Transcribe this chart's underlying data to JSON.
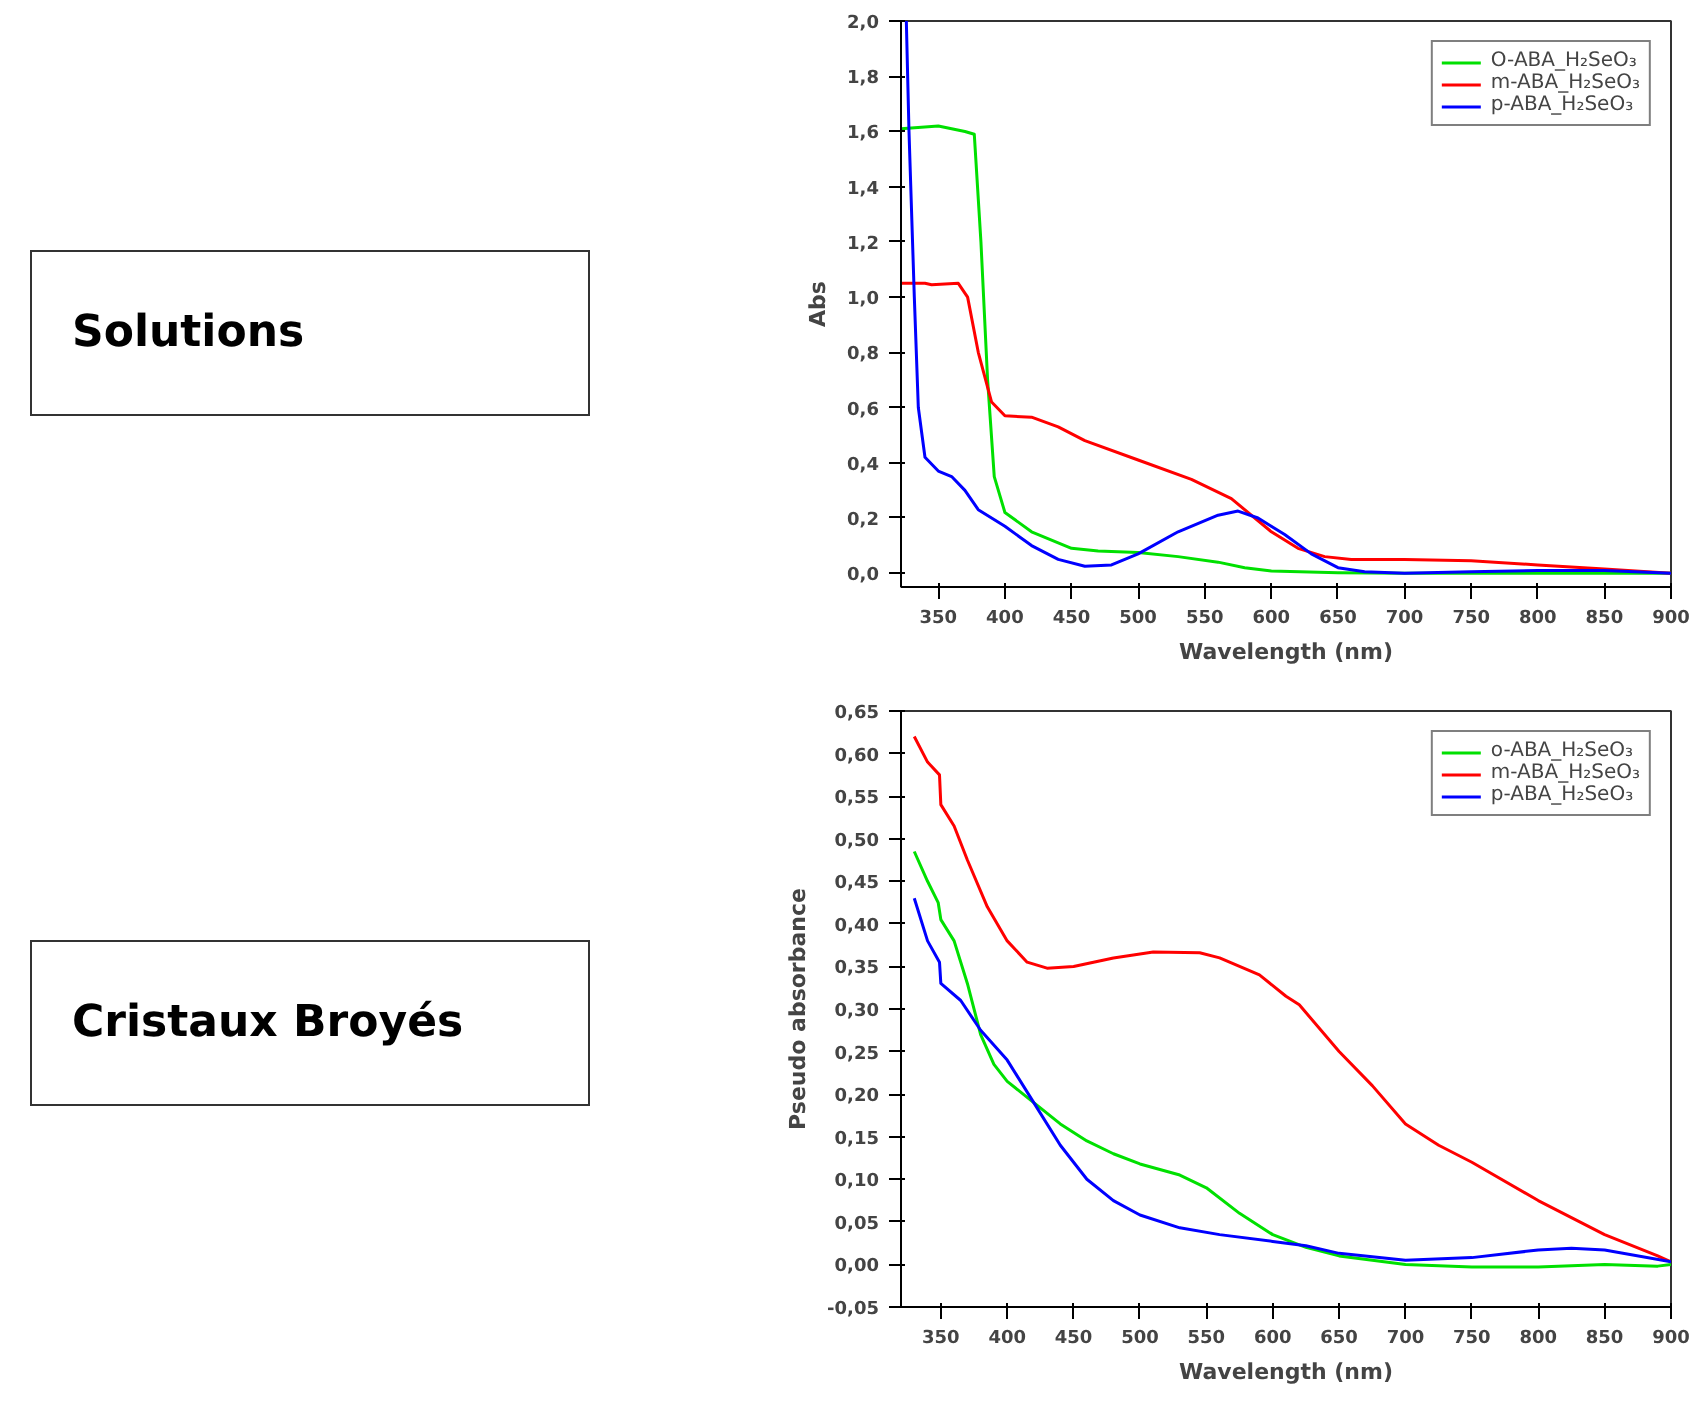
{
  "chart_data": [
    {
      "type": "line",
      "xlabel": "Wavelength (nm)",
      "ylabel": "Abs",
      "annotations": [
        "Solutions"
      ],
      "legend": "top right",
      "grid": false,
      "xlim": [
        322,
        900
      ],
      "ylim": [
        -0.05,
        2.0
      ],
      "xticks": [
        350,
        400,
        450,
        500,
        550,
        600,
        650,
        700,
        750,
        800,
        850,
        900
      ],
      "yticks": [
        {
          "value": 0,
          "label": "0,0"
        },
        {
          "value": 0.2,
          "label": "0,2"
        },
        {
          "value": 0.4,
          "label": "0,4"
        },
        {
          "value": 0.6,
          "label": "0,6"
        },
        {
          "value": 0.8,
          "label": "0,8"
        },
        {
          "value": 1.0,
          "label": "1,0"
        },
        {
          "value": 1.2,
          "label": "1,2"
        },
        {
          "value": 1.4,
          "label": "1,4"
        },
        {
          "value": 1.6,
          "label": "1,6"
        },
        {
          "value": 1.8,
          "label": "1,8"
        },
        {
          "value": 2.0,
          "label": "2,0"
        }
      ],
      "series": [
        {
          "name": "O-ABA_H₂SeO₃",
          "color": "#00e000",
          "x": [
            322,
            350,
            370,
            377,
            382,
            387,
            392,
            400,
            420,
            450,
            470,
            500,
            530,
            560,
            580,
            600,
            650,
            700,
            800,
            900
          ],
          "values": [
            1.61,
            1.62,
            1.6,
            1.59,
            1.2,
            0.7,
            0.35,
            0.22,
            0.15,
            0.09,
            0.08,
            0.075,
            0.06,
            0.04,
            0.02,
            0.008,
            0.002,
            0,
            0,
            0
          ]
        },
        {
          "name": "m-ABA_H₂SeO₃",
          "color": "#ff0000",
          "x": [
            322,
            340,
            345,
            365,
            372,
            380,
            390,
            400,
            420,
            440,
            460,
            500,
            540,
            570,
            600,
            620,
            640,
            660,
            700,
            750,
            800,
            850,
            900
          ],
          "values": [
            1.05,
            1.05,
            1.045,
            1.05,
            1.0,
            0.8,
            0.62,
            0.57,
            0.565,
            0.53,
            0.48,
            0.41,
            0.34,
            0.27,
            0.15,
            0.09,
            0.06,
            0.05,
            0.05,
            0.045,
            0.03,
            0.015,
            0
          ]
        },
        {
          "name": "p-ABA_H₂SeO₃",
          "color": "#0000ff",
          "x": [
            326,
            328,
            332,
            335,
            340,
            350,
            360,
            370,
            380,
            400,
            420,
            440,
            460,
            480,
            500,
            530,
            560,
            575,
            590,
            610,
            630,
            650,
            670,
            700,
            750,
            800,
            850,
            900
          ],
          "values": [
            2.0,
            1.6,
            1.0,
            0.6,
            0.42,
            0.37,
            0.35,
            0.3,
            0.23,
            0.17,
            0.1,
            0.05,
            0.025,
            0.03,
            0.07,
            0.15,
            0.21,
            0.225,
            0.2,
            0.14,
            0.07,
            0.02,
            0.005,
            0,
            0.005,
            0.01,
            0.01,
            0
          ]
        }
      ]
    },
    {
      "type": "line",
      "xlabel": "Wavelength (nm)",
      "ylabel": "Pseudo absorbance",
      "annotations": [
        "Cristaux Broyés"
      ],
      "legend": "top right",
      "grid": false,
      "xlim": [
        320,
        900
      ],
      "ylim": [
        -0.05,
        0.65
      ],
      "xticks": [
        350,
        400,
        450,
        500,
        550,
        600,
        650,
        700,
        750,
        800,
        850,
        900
      ],
      "yticks": [
        {
          "value": -0.05,
          "label": "-0,05"
        },
        {
          "value": 0,
          "label": "0,00"
        },
        {
          "value": 0.05,
          "label": "0,05"
        },
        {
          "value": 0.1,
          "label": "0,10"
        },
        {
          "value": 0.15,
          "label": "0,15"
        },
        {
          "value": 0.2,
          "label": "0,20"
        },
        {
          "value": 0.25,
          "label": "0,25"
        },
        {
          "value": 0.3,
          "label": "0,30"
        },
        {
          "value": 0.35,
          "label": "0,35"
        },
        {
          "value": 0.4,
          "label": "0,40"
        },
        {
          "value": 0.45,
          "label": "0,45"
        },
        {
          "value": 0.5,
          "label": "0,50"
        },
        {
          "value": 0.55,
          "label": "0,55"
        },
        {
          "value": 0.6,
          "label": "0,60"
        },
        {
          "value": 0.65,
          "label": "0,65"
        }
      ],
      "series": [
        {
          "name": "o-ABA_H₂SeO₃",
          "color": "#00e000",
          "x": [
            330,
            340,
            348,
            350,
            360,
            370,
            380,
            390,
            400,
            420,
            440,
            460,
            480,
            500,
            530,
            550,
            575,
            600,
            625,
            650,
            700,
            750,
            800,
            850,
            890,
            900
          ],
          "values": [
            0.485,
            0.45,
            0.425,
            0.405,
            0.38,
            0.33,
            0.27,
            0.235,
            0.215,
            0.19,
            0.165,
            0.145,
            0.13,
            0.118,
            0.105,
            0.09,
            0.06,
            0.035,
            0.02,
            0.01,
            0,
            -0.003,
            -0.003,
            0,
            -0.002,
            0
          ]
        },
        {
          "name": "m-ABA_H₂SeO₃",
          "color": "#ff0000",
          "x": [
            330,
            340,
            349,
            350,
            360,
            370,
            385,
            400,
            415,
            430,
            450,
            480,
            510,
            545,
            560,
            590,
            610,
            620,
            650,
            675,
            700,
            725,
            750,
            800,
            850,
            890,
            900
          ],
          "values": [
            0.62,
            0.59,
            0.575,
            0.54,
            0.515,
            0.475,
            0.42,
            0.38,
            0.355,
            0.348,
            0.35,
            0.36,
            0.367,
            0.366,
            0.36,
            0.34,
            0.315,
            0.305,
            0.25,
            0.21,
            0.165,
            0.14,
            0.12,
            0.075,
            0.035,
            0.01,
            0.003
          ]
        },
        {
          "name": "p-ABA_H₂SeO₃",
          "color": "#0000ff",
          "x": [
            330,
            340,
            349,
            350,
            365,
            380,
            400,
            420,
            440,
            460,
            480,
            500,
            530,
            560,
            600,
            625,
            650,
            700,
            750,
            800,
            825,
            850,
            900
          ],
          "values": [
            0.43,
            0.38,
            0.355,
            0.33,
            0.31,
            0.275,
            0.24,
            0.19,
            0.14,
            0.1,
            0.075,
            0.058,
            0.043,
            0.035,
            0.027,
            0.022,
            0.013,
            0.005,
            0.008,
            0.017,
            0.019,
            0.017,
            0.003
          ]
        }
      ]
    }
  ]
}
